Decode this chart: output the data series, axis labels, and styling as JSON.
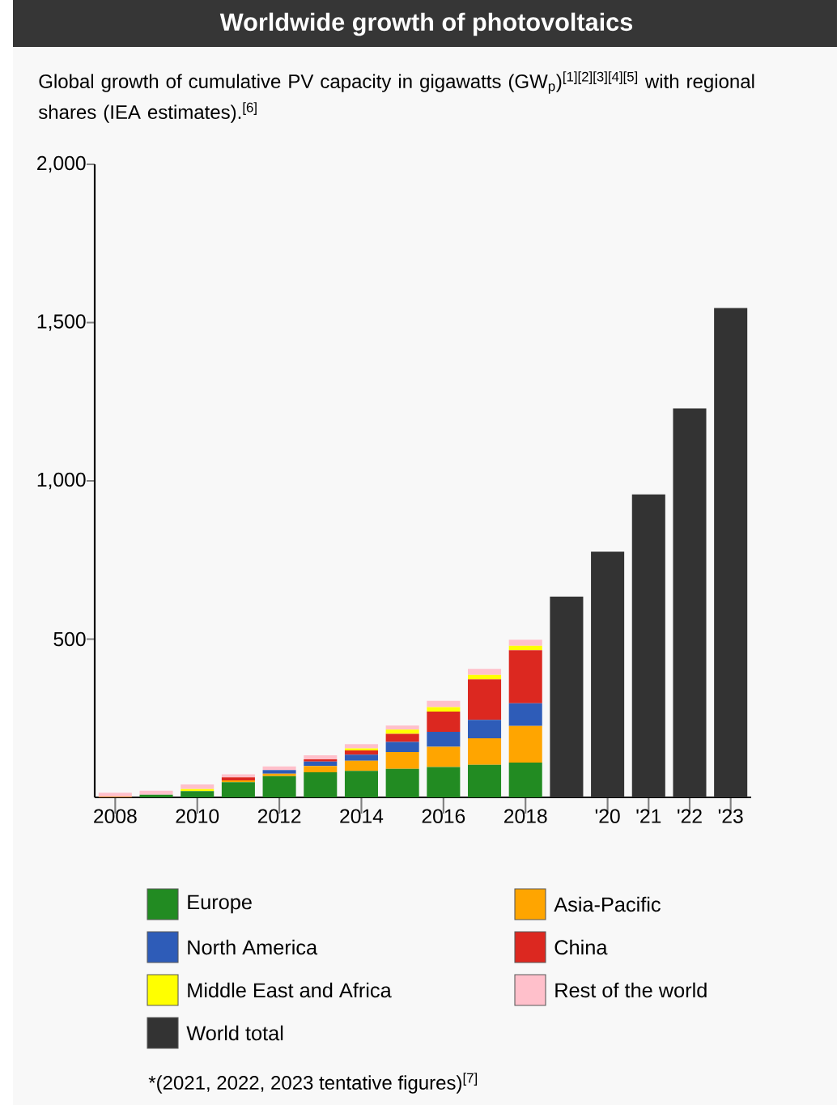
{
  "chart_data": {
    "type": "bar",
    "stacked": true,
    "title": "Worldwide growth of photovoltaics",
    "subtitle": "Global growth of cumulative PV capacity in gigawatts (GW$_{p}$)$^{[1][2][3][4][5]}$ with regional shares (IEA estimates).$^{[6]}$",
    "annotations": [
      "*(2021, 2022, 2023 tentative figures)$^{[7]}$"
    ],
    "categories": [
      "2008",
      null,
      "2010",
      null,
      "2012",
      null,
      "2014",
      null,
      "2016",
      null,
      "2018",
      null,
      "'20",
      "'21",
      "'22",
      "'23"
    ],
    "ylim": [
      0,
      2000
    ],
    "yticks": [
      500,
      {
        "value": 1000,
        "label": "1,000"
      },
      {
        "value": 1500,
        "label": "1,500"
      },
      {
        "value": 2000,
        "label": "2,000"
      }
    ],
    "legend": "bottom",
    "series": [
      {
        "name": "Europe",
        "color": "#228b22",
        "values": [
          null,
          8,
          20,
          48,
          67,
          79,
          84,
          90,
          96,
          103,
          110,
          null,
          null,
          null,
          null,
          null
        ]
      },
      {
        "name": "Asia-Pacific",
        "color": "#ffa500",
        "values": [
          2,
          null,
          null,
          6,
          8,
          20,
          32,
          53,
          64,
          84,
          116,
          null,
          null,
          null,
          null,
          null
        ]
      },
      {
        "name": "North America",
        "color": "#2e5cb8",
        "values": [
          null,
          null,
          null,
          null,
          11,
          14,
          19,
          32,
          47,
          58,
          71,
          null,
          null,
          null,
          null,
          null
        ]
      },
      {
        "name": "China",
        "color": "#dc2820",
        "values": [
          null,
          null,
          null,
          9,
          null,
          7,
          13,
          26,
          64,
          128,
          168,
          null,
          null,
          null,
          null,
          null
        ]
      },
      {
        "name": "Middle East and Africa",
        "color": "#ffff00",
        "values": [
          null,
          null,
          6,
          null,
          null,
          null,
          7,
          13,
          14,
          14,
          14,
          null,
          null,
          null,
          null,
          null
        ]
      },
      {
        "name": "Rest of the world",
        "color": "#ffc0cb",
        "values": [
          13,
          13,
          15,
          10,
          12,
          13,
          13,
          13,
          20,
          19,
          19,
          null,
          null,
          null,
          null,
          null
        ]
      },
      {
        "name": "World total",
        "color": "#333333",
        "values": [
          null,
          null,
          null,
          null,
          null,
          null,
          null,
          null,
          null,
          null,
          null,
          634,
          776,
          957,
          1229,
          1546
        ]
      }
    ]
  }
}
